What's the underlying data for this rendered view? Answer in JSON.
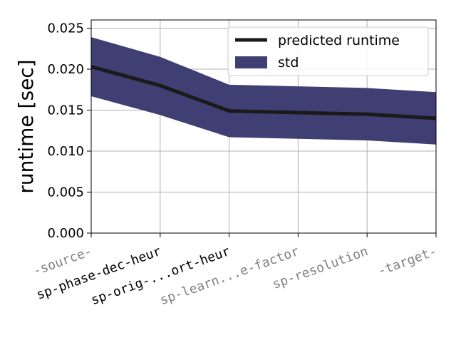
{
  "chart_data": {
    "type": "line",
    "categories": [
      "-source-",
      "sp-phase-dec-heur",
      "sp-orig-...ort-heur",
      "sp-learn...e-factor",
      "sp-resolution",
      "-target-"
    ],
    "category_label_colors": [
      "#808080",
      "#000000",
      "#000000",
      "#808080",
      "#808080",
      "#808080"
    ],
    "xlabel": "",
    "ylabel": "runtime [sec]",
    "ylim": [
      0,
      0.026
    ],
    "yticks": [
      0.0,
      0.005,
      0.01,
      0.015,
      0.02,
      0.025
    ],
    "ytick_labels": [
      "0.000",
      "0.005",
      "0.010",
      "0.015",
      "0.020",
      "0.025"
    ],
    "grid": true,
    "legend_position": "top-right",
    "series": [
      {
        "name": "predicted runtime",
        "kind": "line",
        "color": "#1a1a1a",
        "values": [
          0.0203,
          0.018,
          0.0149,
          0.0147,
          0.0145,
          0.014
        ]
      },
      {
        "name": "std",
        "kind": "band",
        "color": "#3f3f74",
        "lower": [
          0.0167,
          0.0144,
          0.0117,
          0.0115,
          0.0113,
          0.0108
        ],
        "upper": [
          0.0239,
          0.0215,
          0.0181,
          0.0179,
          0.0177,
          0.0172
        ]
      }
    ]
  }
}
